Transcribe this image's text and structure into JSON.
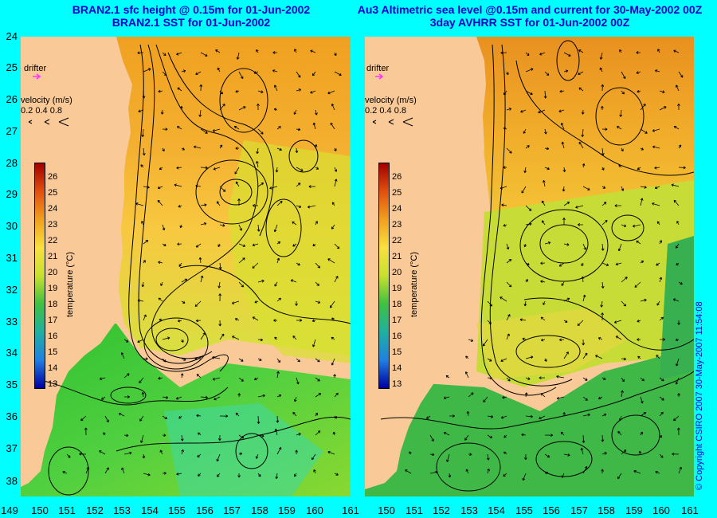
{
  "titles": {
    "left": [
      "BRAN2.1 sfc height @ 0.15m for 01-Jun-2002",
      "BRAN2.1 SST for 01-Jun-2002"
    ],
    "right": [
      "Au3 Altimetric sea level  @0.15m and current for 30-May-2002 00Z",
      "3day AVHRR SST for 01-Jun-2002 00Z"
    ]
  },
  "lat_labels": [
    "24",
    "25",
    "26",
    "27",
    "28",
    "29",
    "30",
    "31",
    "32",
    "33",
    "34",
    "35",
    "36",
    "37",
    "38"
  ],
  "lon_labels": [
    "149",
    "150",
    "151",
    "152",
    "153",
    "154",
    "155",
    "156",
    "157",
    "158",
    "159",
    "160",
    "161",
    "150",
    "151",
    "152",
    "153",
    "154",
    "155",
    "156",
    "157",
    "158",
    "159",
    "160",
    "161"
  ],
  "legend": {
    "drifter": "drifter",
    "velocity_title": "velocity (m/s)",
    "velocity_scale": [
      "0.2",
      "0.4",
      "0.8"
    ]
  },
  "colorbar": {
    "title": "temperature (°C)",
    "ticks": [
      "26",
      "25",
      "24",
      "23",
      "22",
      "21",
      "20",
      "19",
      "18",
      "17",
      "16",
      "15",
      "14",
      "13"
    ]
  },
  "copyright": "© Copyright CSIRO 2007   30-May-2007 11:54:08",
  "colors": {
    "background": "#00ffff",
    "land": "#f9c998",
    "title": "#0000cc",
    "drifter_marker": "#ff33ff"
  }
}
